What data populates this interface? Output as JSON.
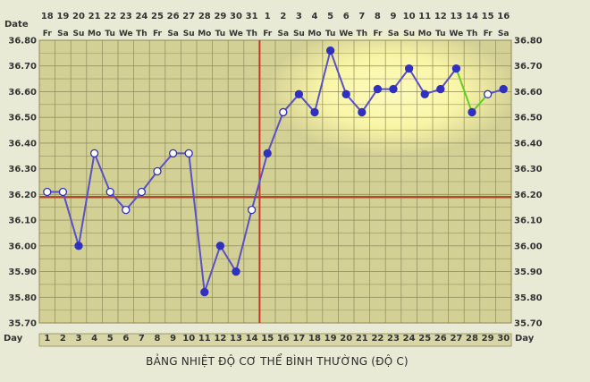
{
  "chart_data": {
    "type": "line",
    "ylim": [
      35.7,
      36.8
    ],
    "yticks": [
      "36.80",
      "36.70",
      "36.60",
      "36.50",
      "36.40",
      "36.30",
      "36.20",
      "36.10",
      "36.00",
      "35.90",
      "35.80",
      "35.70"
    ],
    "date_row_label": "Date",
    "day_row_label": "Day",
    "dates": [
      "18",
      "19",
      "20",
      "21",
      "22",
      "23",
      "24",
      "25",
      "26",
      "27",
      "28",
      "29",
      "30",
      "31",
      "1",
      "2",
      "3",
      "4",
      "5",
      "6",
      "7",
      "8",
      "9",
      "10",
      "11",
      "12",
      "13",
      "14",
      "15",
      "16"
    ],
    "weekdays": [
      "Fr",
      "Sa",
      "Su",
      "Mo",
      "Tu",
      "We",
      "Th",
      "Fr",
      "Sa",
      "Su",
      "Mo",
      "Tu",
      "We",
      "Th",
      "Fr",
      "Sa",
      "Su",
      "Mo",
      "Tu",
      "We",
      "Th",
      "Fr",
      "Sa",
      "Su",
      "Mo",
      "Tu",
      "We",
      "Th",
      "Fr",
      "Sa"
    ],
    "days": [
      "1",
      "2",
      "3",
      "4",
      "5",
      "6",
      "7",
      "8",
      "9",
      "10",
      "11",
      "12",
      "13",
      "14",
      "15",
      "16",
      "17",
      "18",
      "19",
      "20",
      "21",
      "22",
      "23",
      "24",
      "25",
      "26",
      "27",
      "28",
      "29",
      "30"
    ],
    "temperatures": [
      36.21,
      36.21,
      36.0,
      36.36,
      36.21,
      36.14,
      36.21,
      36.29,
      36.36,
      36.36,
      35.82,
      36.0,
      35.9,
      36.14,
      36.36,
      36.52,
      36.59,
      36.52,
      36.76,
      36.59,
      36.52,
      36.61,
      36.61,
      36.69,
      36.59,
      36.61,
      36.69,
      36.52,
      36.59,
      36.61
    ],
    "marker": [
      "open",
      "open",
      "filled",
      "open",
      "open",
      "open",
      "open",
      "open",
      "open",
      "open",
      "filled",
      "filled",
      "filled",
      "open",
      "filled",
      "open",
      "filled",
      "filled",
      "filled",
      "filled",
      "filled",
      "filled",
      "filled",
      "filled",
      "filled",
      "filled",
      "filled",
      "filled",
      "open",
      "filled"
    ],
    "coverline": 36.19,
    "ovulation_day": 14,
    "highlighted_from_day": 16,
    "title": "BẢNG NHIỆT ĐỘ CƠ THỂ BÌNH THƯỜNG (ĐỘ C)",
    "grid": true,
    "colors": {
      "background": "#e9ead6",
      "plot": "#d3d096",
      "grid": "#8c8a58",
      "line": "#5a50c8",
      "marker": "#3030c0",
      "coverline": "#b24a2a",
      "ovulation": "#c2382c",
      "highlight": "#fbf7a8",
      "green_segment": "#66cc22"
    }
  }
}
